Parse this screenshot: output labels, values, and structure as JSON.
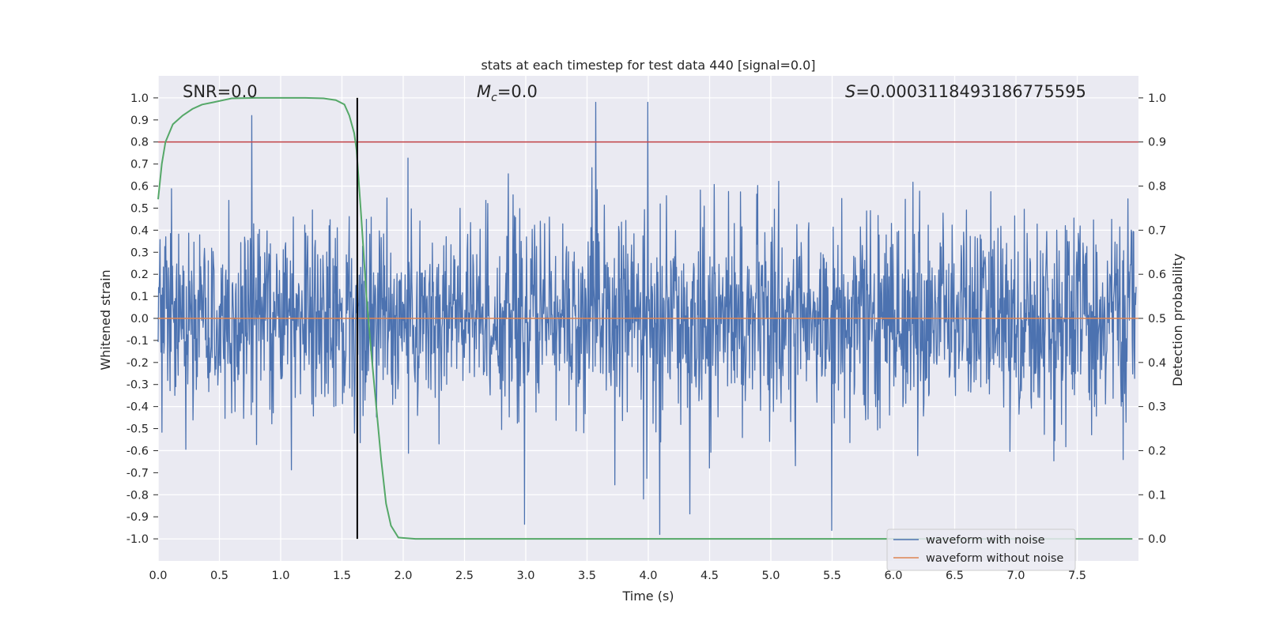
{
  "chart_data": {
    "type": "line",
    "title": "stats at each timestep for test data 440 [signal=0.0]",
    "xlabel": "Time (s)",
    "ylabel_left": "Whitened strain",
    "ylabel_right": "Detection probability",
    "xlim": [
      0.0,
      8.0
    ],
    "ylim_left": [
      -1.1,
      1.1
    ],
    "ylim_right": [
      -0.05,
      1.05
    ],
    "x_ticks": [
      "0.0",
      "0.5",
      "1.0",
      "1.5",
      "2.0",
      "2.5",
      "3.0",
      "3.5",
      "4.0",
      "4.5",
      "5.0",
      "5.5",
      "6.0",
      "6.5",
      "7.0",
      "7.5"
    ],
    "y_ticks_left": [
      "1.0",
      "0.9",
      "0.8",
      "0.7",
      "0.6",
      "0.5",
      "0.4",
      "0.3",
      "0.2",
      "0.1",
      "0.0",
      "-0.1",
      "-0.2",
      "-0.3",
      "-0.4",
      "-0.5",
      "-0.6",
      "-0.7",
      "-0.8",
      "-0.9",
      "-1.0"
    ],
    "y_ticks_right": [
      "1.0",
      "0.9",
      "0.8",
      "0.7",
      "0.6",
      "0.5",
      "0.4",
      "0.3",
      "0.2",
      "0.1",
      "0.0"
    ],
    "grid": true,
    "annotations": {
      "snr": "SNR=0.0",
      "mc_symbol": "M",
      "mc_subscript": "c",
      "mc_value": "=0.0",
      "s_symbol": "S",
      "s_value": "=0.0003118493186775595"
    },
    "threshold": {
      "value": 0.9,
      "axis": "right",
      "color": "#c44e52"
    },
    "detection_time": {
      "x": 1.625,
      "color": "#000000"
    },
    "series": [
      {
        "name": "waveform with noise",
        "axis": "left",
        "color": "#4c72b0",
        "kind": "noise",
        "duration": 8.0,
        "sample_rate": 256,
        "amplitude_std": 0.22,
        "x_end": 7.98
      },
      {
        "name": "waveform without noise",
        "axis": "left",
        "color": "#dd8452",
        "kind": "flat",
        "value": 0.0
      },
      {
        "name": "detection probability",
        "axis": "right",
        "color": "#55a868",
        "kind": "line",
        "x": [
          0.0,
          0.03,
          0.06,
          0.12,
          0.2,
          0.28,
          0.36,
          0.45,
          0.6,
          0.8,
          1.0,
          1.2,
          1.35,
          1.45,
          1.52,
          1.56,
          1.6,
          1.62,
          1.66,
          1.7,
          1.74,
          1.78,
          1.82,
          1.86,
          1.9,
          1.96,
          2.1,
          3.0,
          4.0,
          5.0,
          6.0,
          7.0,
          7.95
        ],
        "y": [
          0.77,
          0.85,
          0.9,
          0.94,
          0.96,
          0.975,
          0.985,
          0.99,
          0.999,
          1.0,
          1.0,
          1.0,
          0.999,
          0.995,
          0.985,
          0.96,
          0.92,
          0.88,
          0.72,
          0.55,
          0.42,
          0.3,
          0.18,
          0.08,
          0.03,
          0.003,
          0.0,
          0.0,
          0.0,
          0.0,
          0.0,
          0.0,
          0.0
        ]
      }
    ],
    "legend": {
      "position": "lower-right",
      "entries": [
        {
          "label": "waveform with noise",
          "color": "#4c72b0"
        },
        {
          "label": "waveform without noise",
          "color": "#dd8452"
        }
      ]
    }
  }
}
